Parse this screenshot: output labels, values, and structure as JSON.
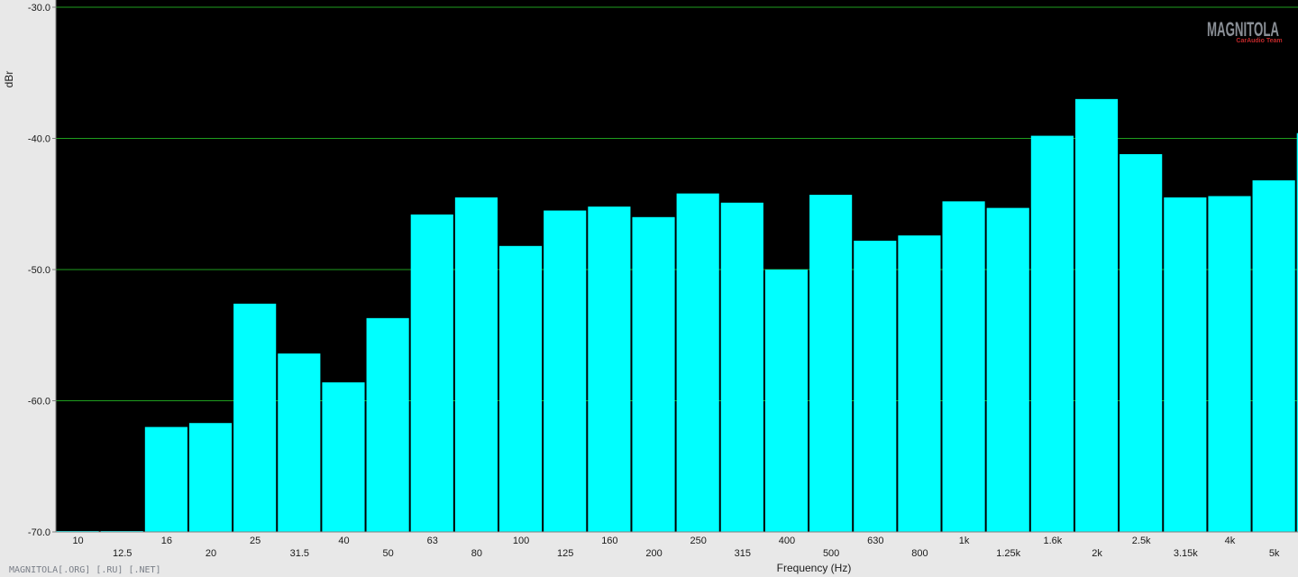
{
  "chart_data": {
    "type": "bar",
    "title": "",
    "xlabel": "Frequency (Hz)",
    "ylabel": "dBr",
    "ylim": [
      -70,
      -30
    ],
    "yticks": [
      "-30.0",
      "-40.0",
      "-50.0",
      "-60.0",
      "-70.0"
    ],
    "grid": true,
    "categories": [
      "10",
      "12.5",
      "16",
      "20",
      "25",
      "31.5",
      "40",
      "50",
      "63",
      "80",
      "100",
      "125",
      "160",
      "200",
      "250",
      "315",
      "400",
      "500",
      "630",
      "800",
      "1k",
      "1.25k",
      "1.6k",
      "2k",
      "2.5k",
      "3.15k",
      "4k",
      "5k"
    ],
    "values": [
      -70,
      -70,
      -62.0,
      -61.7,
      -52.6,
      -56.4,
      -58.6,
      -53.7,
      -45.8,
      -44.5,
      -48.2,
      -45.5,
      -45.2,
      -46.0,
      -44.2,
      -44.9,
      -50.0,
      -44.3,
      -47.8,
      -47.4,
      -44.8,
      -45.3,
      -39.8,
      -37.0,
      -41.2,
      -44.5,
      -44.4,
      -43.2
    ],
    "partial_bar": {
      "value": -39.6
    },
    "colors": {
      "bar": "#00ffff",
      "plot_bg": "#000000",
      "grid": "#1f9e1f",
      "page_bg": "#e8e8e8"
    }
  },
  "watermark": "MAGNITOLA[.ORG] [.RU] [.NET]",
  "logo": {
    "main": "MAGNITOLA",
    "sub": "CarAudio Team"
  }
}
